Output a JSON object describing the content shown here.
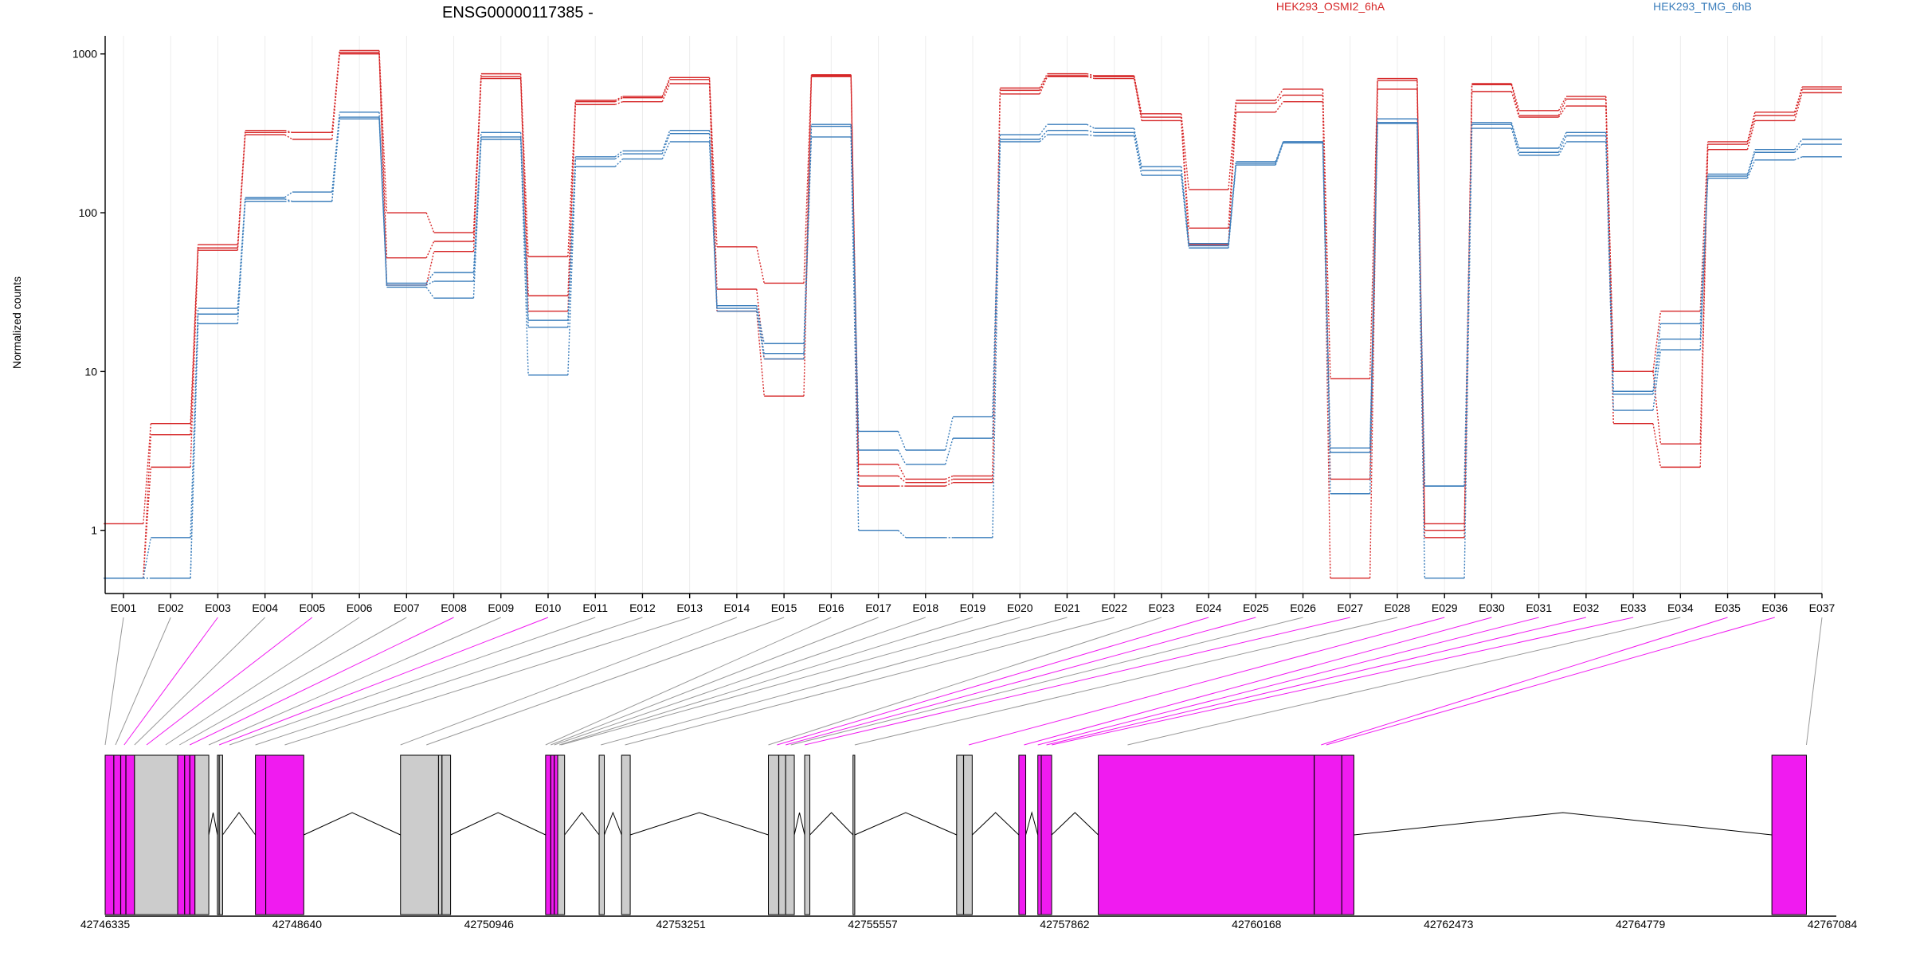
{
  "chart_data": {
    "type": "line",
    "title": "ENSG00000117385 -",
    "xlabel": "",
    "ylabel": "Normalized counts",
    "yscale": "log",
    "ylim": [
      0.4,
      1300
    ],
    "yticks": [
      1,
      10,
      100,
      1000
    ],
    "ytick_labels": [
      "1",
      "10",
      "100",
      "1000"
    ],
    "grid": "vertical",
    "legend_position": "top",
    "categories": [
      "E001",
      "E002",
      "E003",
      "E004",
      "E005",
      "E006",
      "E007",
      "E008",
      "E009",
      "E010",
      "E011",
      "E012",
      "E013",
      "E014",
      "E015",
      "E016",
      "E017",
      "E018",
      "E019",
      "E020",
      "E021",
      "E022",
      "E023",
      "E024",
      "E025",
      "E026",
      "E027",
      "E028",
      "E029",
      "E030",
      "E031",
      "E032",
      "E033",
      "E034",
      "E035",
      "E036",
      "E037"
    ],
    "groups": [
      {
        "name": "HEK293_OSMI2_6hA",
        "color": "#d62728"
      },
      {
        "name": "HEK293_TMG_6hB",
        "color": "#3a7dbb"
      }
    ],
    "series": [
      {
        "group": "HEK293_OSMI2_6hA",
        "values": [
          1.1,
          4.7,
          63,
          330,
          320,
          1050,
          100,
          75,
          750,
          53,
          510,
          540,
          710,
          61,
          36,
          740,
          2.6,
          2.1,
          2.2,
          610,
          750,
          730,
          420,
          140,
          510,
          600,
          9,
          700,
          1.1,
          650,
          440,
          540,
          10,
          24,
          280,
          430,
          620
        ]
      },
      {
        "group": "HEK293_OSMI2_6hA",
        "values": [
          0.5,
          4.0,
          60,
          320,
          320,
          1020,
          52,
          66,
          720,
          30,
          500,
          530,
          690,
          33,
          12,
          730,
          2.2,
          2.0,
          2.1,
          590,
          730,
          720,
          400,
          80,
          490,
          550,
          2.1,
          680,
          1.0,
          640,
          410,
          520,
          10,
          3.5,
          270,
          410,
          600
        ]
      },
      {
        "group": "HEK293_OSMI2_6hA",
        "values": [
          0.5,
          2.5,
          58,
          310,
          290,
          1000,
          35,
          57,
          700,
          24,
          480,
          500,
          650,
          24,
          7,
          720,
          1.9,
          1.9,
          2.0,
          560,
          720,
          700,
          380,
          63,
          430,
          500,
          0.5,
          600,
          0.9,
          580,
          400,
          470,
          4.7,
          2.5,
          250,
          380,
          570
        ]
      },
      {
        "group": "HEK293_TMG_6hB",
        "values": [
          0.5,
          0.9,
          25,
          125,
          135,
          430,
          36,
          42,
          320,
          21,
          225,
          245,
          330,
          26,
          15,
          360,
          4.2,
          3.2,
          5.2,
          310,
          360,
          340,
          195,
          64,
          210,
          280,
          3.3,
          390,
          1.9,
          370,
          255,
          320,
          7.5,
          20,
          175,
          250,
          290
        ]
      },
      {
        "group": "HEK293_TMG_6hB",
        "values": [
          0.5,
          0.5,
          23,
          122,
          118,
          400,
          35,
          37,
          300,
          19,
          218,
          235,
          315,
          25,
          13,
          350,
          3.2,
          2.6,
          3.8,
          290,
          330,
          320,
          185,
          62,
          205,
          280,
          3.1,
          370,
          1.9,
          360,
          240,
          305,
          7.2,
          16,
          170,
          240,
          270
        ]
      },
      {
        "group": "HEK293_TMG_6hB",
        "values": [
          0.5,
          0.5,
          20,
          118,
          118,
          390,
          34,
          29,
          290,
          9.5,
          195,
          218,
          280,
          24,
          12,
          300,
          1.0,
          0.9,
          0.9,
          280,
          310,
          305,
          172,
          60,
          200,
          275,
          1.7,
          365,
          0.5,
          340,
          230,
          280,
          5.7,
          13.7,
          165,
          215,
          225
        ]
      }
    ],
    "gene_model": {
      "coordinate_ticks": [
        "42746335",
        "42748640",
        "42750946",
        "42753251",
        "42755557",
        "42757862",
        "42760168",
        "42762473",
        "42764779",
        "42767084"
      ],
      "exon_colors": {
        "non_significant": "#cccccc",
        "significant": "#f01bf0"
      },
      "exon_significant": [
        false,
        false,
        true,
        false,
        true,
        false,
        false,
        true,
        false,
        true,
        false,
        false,
        false,
        false,
        false,
        false,
        false,
        false,
        false,
        false,
        false,
        false,
        false,
        true,
        true,
        false,
        true,
        false,
        true,
        true,
        true,
        true,
        true,
        false,
        true,
        true,
        false
      ]
    }
  }
}
